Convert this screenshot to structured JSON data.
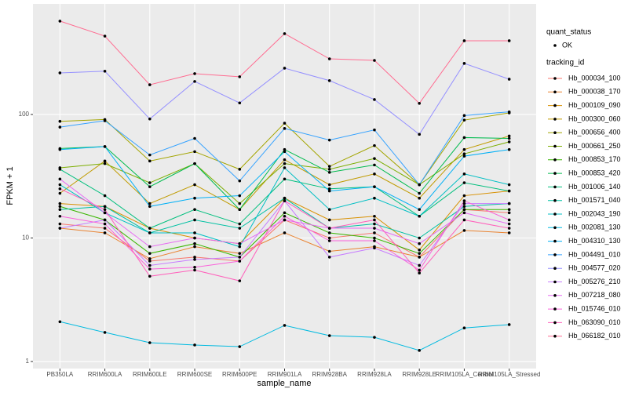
{
  "chart_data": {
    "type": "line",
    "x_label": "sample_name",
    "y_label": "FPKM + 1",
    "categories": [
      "PB350LA",
      "RRIM600LA",
      "RRIM600LE",
      "RRIM600SE",
      "RRIM600PE",
      "RRIM901LA",
      "RRIM928BA",
      "RRIM928LA",
      "RRIM928LE",
      "RRIM105LA_Control",
      "RRIM105LA_Stressed"
    ],
    "ylim": [
      0.877,
      785
    ],
    "yticks": [
      1,
      10,
      100
    ],
    "log_scale": true,
    "grid": true,
    "legend_position": "right",
    "point_color": "#000000",
    "shape_legend": {
      "title": "quant_status",
      "labels": [
        "OK"
      ]
    },
    "legend_title": "tracking_id",
    "series": [
      {
        "name": "Hb_000034_100",
        "color": "#F8766D",
        "values": [
          13,
          12,
          6.5,
          7,
          6.5,
          14,
          10,
          11,
          7,
          17,
          16
        ]
      },
      {
        "name": "Hb_000038_170",
        "color": "#EA8331",
        "values": [
          12,
          11,
          6.8,
          8.5,
          7.5,
          11,
          7.8,
          8.5,
          7.0,
          11.5,
          11
        ]
      },
      {
        "name": "Hb_000109_090",
        "color": "#D89000",
        "values": [
          19,
          18,
          12,
          10,
          9,
          21,
          14,
          15,
          8,
          22,
          24
        ]
      },
      {
        "name": "Hb_000300_060",
        "color": "#C09B00",
        "values": [
          23,
          42,
          19,
          27,
          17,
          43,
          27,
          33,
          21,
          52,
          67
        ]
      },
      {
        "name": "Hb_000656_400",
        "color": "#A3A500",
        "values": [
          88,
          91,
          42,
          50,
          36,
          85,
          38,
          56,
          27,
          90,
          103
        ]
      },
      {
        "name": "Hb_000661_250",
        "color": "#7CAE00",
        "values": [
          37,
          40,
          28,
          40,
          19,
          40,
          36,
          44,
          27,
          48,
          60
        ]
      },
      {
        "name": "Hb_000853_170",
        "color": "#39B600",
        "values": [
          18,
          14,
          7.5,
          9,
          7,
          16,
          11,
          10,
          7.5,
          17,
          17
        ]
      },
      {
        "name": "Hb_000853_420",
        "color": "#00BB4E",
        "values": [
          53,
          55,
          26,
          40,
          17,
          52,
          34,
          39,
          23,
          65,
          64
        ]
      },
      {
        "name": "Hb_001006_140",
        "color": "#00BF7D",
        "values": [
          36,
          22,
          12,
          17,
          13,
          30,
          25,
          26,
          15,
          28,
          24
        ]
      },
      {
        "name": "Hb_001571_040",
        "color": "#00C1A3",
        "values": [
          17,
          18,
          11,
          14,
          12,
          21,
          12,
          13,
          10,
          18,
          19
        ]
      },
      {
        "name": "Hb_002043_190",
        "color": "#00BFC4",
        "values": [
          27,
          16,
          11,
          11,
          8.5,
          37,
          17,
          21,
          15,
          33,
          27
        ]
      },
      {
        "name": "Hb_002081_130",
        "color": "#00BAE0",
        "values": [
          2.1,
          1.72,
          1.42,
          1.36,
          1.32,
          1.96,
          1.62,
          1.57,
          1.23,
          1.87,
          1.99
        ]
      },
      {
        "name": "Hb_004310_130",
        "color": "#00B0F6",
        "values": [
          52,
          55,
          18,
          21,
          22,
          50,
          24,
          26,
          17,
          46,
          52
        ]
      },
      {
        "name": "Hb_004491_010",
        "color": "#35A2FF",
        "values": [
          79,
          89,
          47,
          64,
          29,
          77,
          62,
          75,
          27,
          98,
          105
        ]
      },
      {
        "name": "Hb_004577_020",
        "color": "#9590FF",
        "values": [
          217,
          224,
          92,
          185,
          124,
          237,
          188,
          132,
          69,
          259,
          193
        ]
      },
      {
        "name": "Hb_005276_210",
        "color": "#C77CFF",
        "values": [
          12,
          14,
          6,
          6.7,
          7,
          20,
          7,
          8.3,
          6,
          19,
          19
        ]
      },
      {
        "name": "Hb_007218_080",
        "color": "#E76BF3",
        "values": [
          30,
          16,
          8.5,
          10,
          9,
          14,
          12,
          12,
          9,
          16,
          13
        ]
      },
      {
        "name": "Hb_015746_010",
        "color": "#FA62DB",
        "values": [
          15,
          13,
          5.6,
          5.8,
          6.5,
          15,
          9.5,
          9.5,
          5.5,
          20,
          14
        ]
      },
      {
        "name": "Hb_063090_010",
        "color": "#FF62BC",
        "values": [
          25,
          17,
          4.9,
          5.5,
          4.5,
          20,
          12,
          14,
          5.2,
          14,
          12
        ]
      },
      {
        "name": "Hb_066182_010",
        "color": "#FF6C91",
        "values": [
          570,
          431,
          174,
          214,
          202,
          451,
          282,
          274,
          123,
          395,
          395
        ]
      }
    ]
  }
}
